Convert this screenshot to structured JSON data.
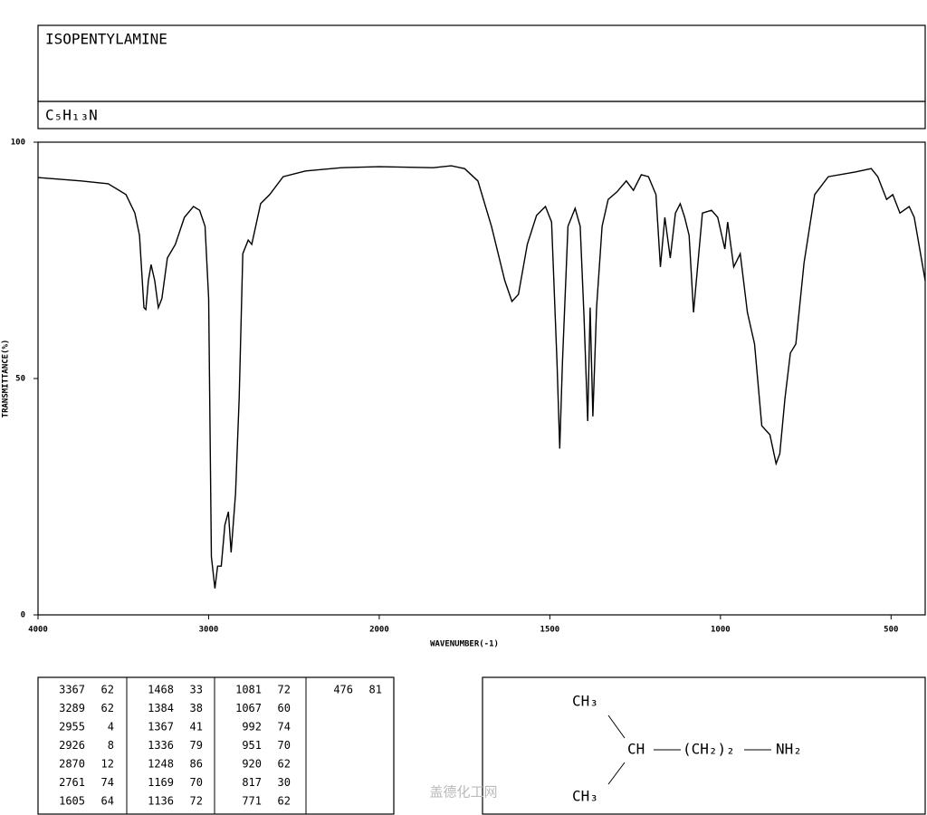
{
  "chart_data": {
    "type": "line",
    "title": "ISOPENTYLAMINE",
    "formula": "C₅H₁₃N",
    "x_label": "WAVENUMBER(-1)",
    "y_label": "TRANSMITTANCE(%)",
    "xlim": [
      4000,
      400
    ],
    "ylim": [
      0,
      100
    ],
    "xscale": {
      "break": 2000,
      "factor": 2
    },
    "xticks": [
      4000,
      3000,
      2000,
      1500,
      1000,
      500
    ],
    "yticks": [
      0,
      50,
      100
    ],
    "color": "#000000",
    "x": [
      4000,
      3747,
      3589,
      3484,
      3432,
      3405,
      3379,
      3368,
      3353,
      3337,
      3316,
      3295,
      3274,
      3242,
      3195,
      3142,
      3089,
      3053,
      3021,
      3000,
      2984,
      2963,
      2947,
      2926,
      2905,
      2884,
      2868,
      2842,
      2821,
      2800,
      2768,
      2747,
      2695,
      2642,
      2563,
      2432,
      2221,
      2000,
      1842,
      1789,
      1750,
      1711,
      1671,
      1632,
      1611,
      1592,
      1566,
      1539,
      1513,
      1495,
      1479,
      1471,
      1463,
      1447,
      1426,
      1411,
      1400,
      1389,
      1382,
      1374,
      1363,
      1347,
      1329,
      1303,
      1276,
      1255,
      1232,
      1211,
      1189,
      1176,
      1163,
      1147,
      1132,
      1118,
      1105,
      1092,
      1079,
      1066,
      1053,
      1026,
      1008,
      987,
      979,
      961,
      942,
      921,
      900,
      879,
      855,
      837,
      826,
      811,
      795,
      779,
      755,
      724,
      684,
      605,
      558,
      539,
      513,
      495,
      474,
      447,
      432,
      400
    ],
    "values": [
      92.5,
      91.8,
      91.2,
      88.9,
      85,
      80.3,
      65,
      64.6,
      70.7,
      74.1,
      70.7,
      65,
      66.9,
      75.5,
      78.4,
      84.1,
      86.4,
      85.6,
      82.2,
      66.9,
      12.3,
      5.6,
      10.3,
      10.3,
      19,
      21.8,
      13.2,
      25.7,
      45.8,
      76.4,
      79.3,
      78.4,
      87,
      88.9,
      92.7,
      93.9,
      94.6,
      94.8,
      94.6,
      95,
      94.4,
      91.8,
      82.2,
      70.7,
      66.3,
      67.8,
      78.4,
      84.5,
      86.4,
      83.1,
      53.4,
      35.2,
      53.4,
      82.2,
      86,
      82.2,
      63.2,
      41,
      65,
      42,
      65,
      82.2,
      87.9,
      89.5,
      91.8,
      89.8,
      93.1,
      92.7,
      88.9,
      73.6,
      84.1,
      75.5,
      85,
      87,
      84.1,
      80.3,
      64,
      74.5,
      85,
      85.6,
      84.1,
      77.4,
      83.1,
      73.6,
      76.4,
      64,
      57.3,
      40,
      38.1,
      32,
      34.1,
      45.8,
      55.4,
      57.3,
      74.5,
      88.9,
      92.7,
      93.7,
      94.4,
      92.7,
      87.9,
      88.9,
      85,
      86.4,
      84.1,
      70.7
    ]
  },
  "peak_table": [
    [
      [
        3367,
        62
      ],
      [
        3289,
        62
      ],
      [
        2955,
        4
      ],
      [
        2926,
        8
      ],
      [
        2870,
        12
      ],
      [
        2761,
        74
      ],
      [
        1605,
        64
      ]
    ],
    [
      [
        1468,
        33
      ],
      [
        1384,
        38
      ],
      [
        1367,
        41
      ],
      [
        1336,
        79
      ],
      [
        1248,
        86
      ],
      [
        1169,
        70
      ],
      [
        1136,
        72
      ]
    ],
    [
      [
        1081,
        72
      ],
      [
        1067,
        60
      ],
      [
        992,
        74
      ],
      [
        951,
        70
      ],
      [
        920,
        62
      ],
      [
        817,
        30
      ],
      [
        771,
        62
      ]
    ],
    [
      [
        476,
        81
      ]
    ]
  ],
  "structure": {
    "top": "CH₃",
    "center": "CH",
    "chain": "(CH₂)₂",
    "end": "NH₂",
    "bottom": "CH₃"
  },
  "watermark": "盖德化工网"
}
